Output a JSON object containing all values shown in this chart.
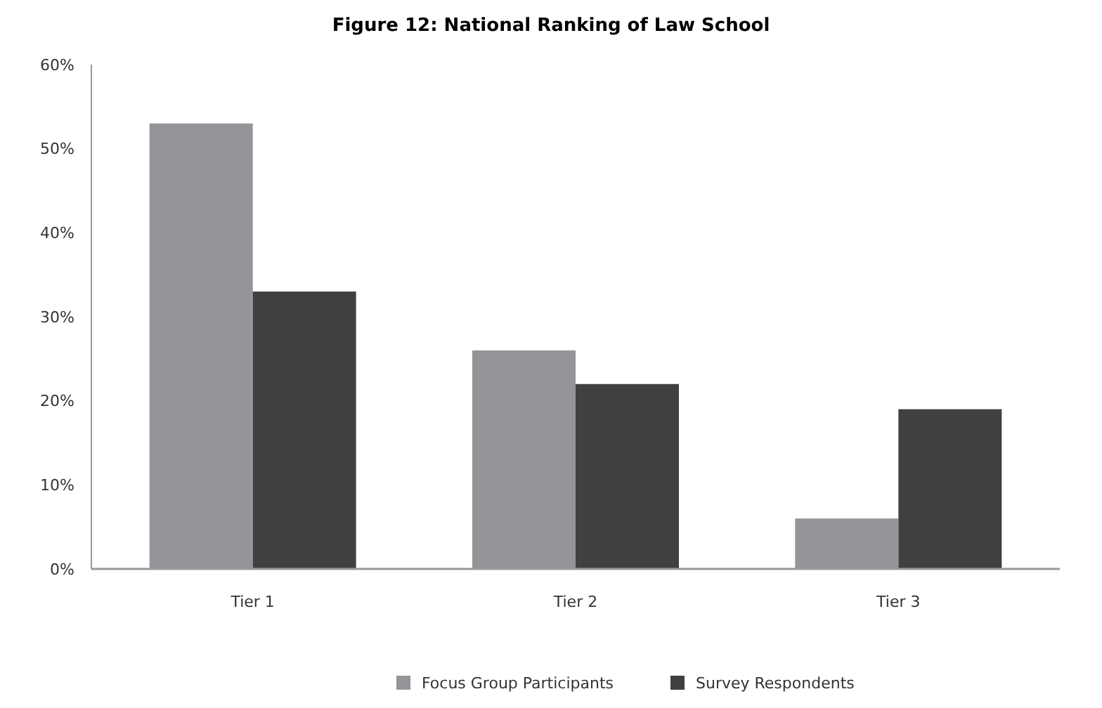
{
  "chart_data": {
    "type": "bar",
    "title": "Figure 12:  National Ranking of Law School",
    "categories": [
      "Tier 1",
      "Tier 2",
      "Tier 3"
    ],
    "series": [
      {
        "name": "Focus Group Participants",
        "color": "#939598",
        "values": [
          53,
          26,
          6
        ]
      },
      {
        "name": "Survey Respondents",
        "color": "#404040",
        "values": [
          33,
          22,
          19
        ]
      }
    ],
    "ylim": [
      0,
      60
    ],
    "yticks": [
      {
        "value": 0,
        "label": "0%"
      },
      {
        "value": 10,
        "label": "10%"
      },
      {
        "value": 20,
        "label": "20%"
      },
      {
        "value": 30,
        "label": "30%"
      },
      {
        "value": 40,
        "label": "40%"
      },
      {
        "value": 50,
        "label": "50%"
      },
      {
        "value": 60,
        "label": "60%"
      }
    ],
    "grid": false,
    "legend": "bottom"
  }
}
